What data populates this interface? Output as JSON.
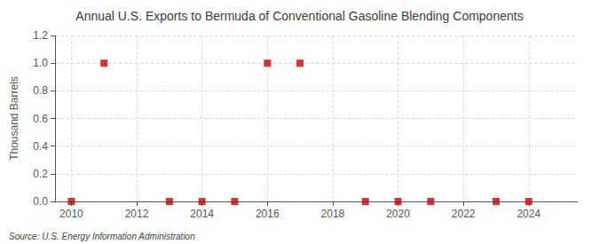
{
  "chart_data": {
    "type": "scatter",
    "title": "Annual U.S. Exports to Bermuda of Conventional Gasoline Blending Components",
    "ylabel": "Thousand Barrels",
    "annotations": [
      "Source: U.S. Energy Information Administration"
    ],
    "x": [
      2010,
      2011,
      2013,
      2014,
      2015,
      2016,
      2017,
      2019,
      2020,
      2021,
      2023,
      2024
    ],
    "values": [
      0,
      1.0,
      0,
      0,
      0,
      1.0,
      1.0,
      0,
      0,
      0,
      0,
      0
    ],
    "color": "#cc0000",
    "marker": "square",
    "xlim": [
      2009.5,
      2025.5
    ],
    "xticks": [
      2010,
      2012,
      2014,
      2016,
      2018,
      2020,
      2022,
      2024
    ],
    "ylim": [
      0,
      1.2
    ],
    "yticks": [
      {
        "value": 0.0,
        "label": "0.0"
      },
      0.2,
      0.4,
      0.6,
      0.8,
      {
        "value": 1.0,
        "label": "1.0"
      },
      1.2
    ],
    "grid": true
  }
}
